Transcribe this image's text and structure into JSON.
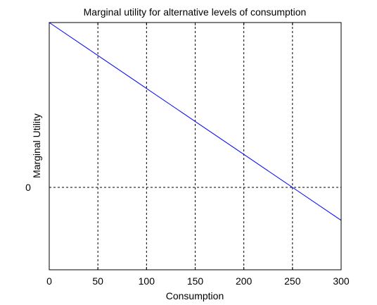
{
  "chart_data": {
    "type": "line",
    "title": "Marginal utility for alternative levels of consumption",
    "xlabel": "Consumption",
    "ylabel": "Marginal Utility",
    "xlim": [
      0,
      300
    ],
    "ylim": [
      -0.5,
      1.0
    ],
    "x_ticks": [
      0,
      50,
      100,
      150,
      200,
      250,
      300
    ],
    "x_tick_labels": [
      "0",
      "50",
      "100",
      "150",
      "200",
      "250",
      "300"
    ],
    "y_ticks": [
      0
    ],
    "y_tick_labels": [
      "0"
    ],
    "grid": true,
    "series": [
      {
        "x": [
          0,
          50,
          100,
          150,
          200,
          250,
          300
        ],
        "y": [
          1.0,
          0.8,
          0.6,
          0.4,
          0.2,
          0.0,
          -0.2
        ],
        "color": "#0000ff"
      }
    ]
  }
}
